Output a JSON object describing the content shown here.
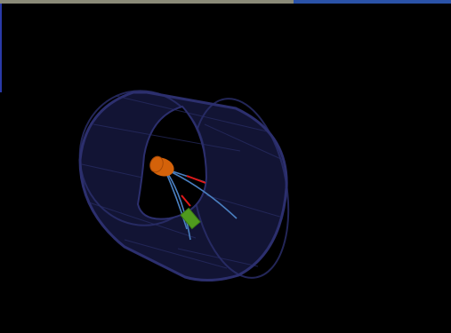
{
  "viewer": {
    "background": "#000000",
    "load_progress": 0.65,
    "colors": {
      "progress_fill": "#8a8a78",
      "progress_rest": "#2a52a8",
      "edge_marker": "#2a3aa8",
      "detector_shell": "#14163a",
      "detector_outline": "#2c2f6e",
      "detector_ribs": "#2a2d66",
      "inner_bore": "#000000",
      "vertex_cylinder": "#d4620a",
      "tracks": "#4a7fc0",
      "red_tracks": "#e01818",
      "calorimeter_hit": "#4f9a1e"
    },
    "objects": [
      {
        "name": "detector-barrel",
        "icon": "cylinder-shell"
      },
      {
        "name": "vertex-detector",
        "icon": "orange-cylinder"
      },
      {
        "name": "particle-tracks",
        "count": 4
      },
      {
        "name": "electron-tracks",
        "count": 2
      },
      {
        "name": "calorimeter-deposit",
        "icon": "green-block"
      }
    ]
  }
}
